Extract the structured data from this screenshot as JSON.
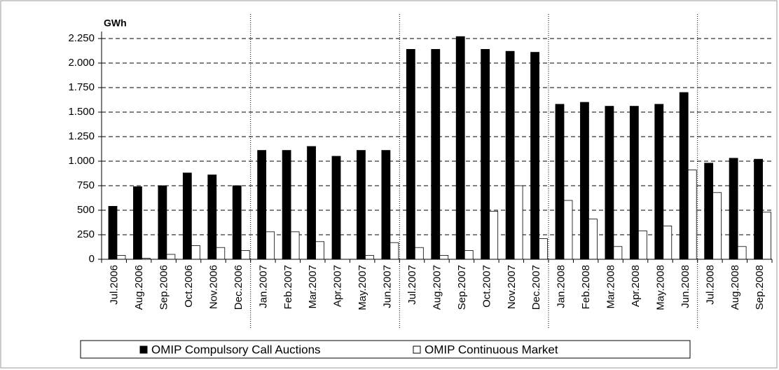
{
  "chart_data": {
    "type": "bar",
    "y_label": "GWh",
    "categories": [
      "Jul.2006",
      "Aug.2006",
      "Sep.2006",
      "Oct.2006",
      "Nov.2006",
      "Dec.2006",
      "Jan.2007",
      "Feb.2007",
      "Mar.2007",
      "Apr.2007",
      "May.2007",
      "Jun.2007",
      "Jul.2007",
      "Aug.2007",
      "Sep.2007",
      "Oct.2007",
      "Nov.2007",
      "Dec.2007",
      "Jan.2008",
      "Feb.2008",
      "Mar.2008",
      "Apr.2008",
      "May.2008",
      "Jun.2008",
      "Jul.2008",
      "Aug.2008",
      "Sep.2008"
    ],
    "series": [
      {
        "name": "OMIP Compulsory Call Auctions",
        "color": "#000000",
        "values": [
          540,
          740,
          750,
          880,
          860,
          750,
          1110,
          1110,
          1150,
          1050,
          1110,
          1110,
          2140,
          2140,
          2270,
          2140,
          2120,
          2110,
          1580,
          1600,
          1560,
          1560,
          1580,
          1700,
          980,
          1030,
          1020
        ]
      },
      {
        "name": "OMIP Continuous Market",
        "color": "#ffffff",
        "values": [
          40,
          10,
          50,
          140,
          120,
          90,
          280,
          280,
          180,
          0,
          40,
          170,
          120,
          40,
          90,
          490,
          750,
          210,
          600,
          410,
          130,
          290,
          340,
          910,
          680,
          130,
          480
        ]
      }
    ],
    "ylim": [
      0,
      2250
    ],
    "yticks": [
      0,
      250,
      500,
      750,
      {
        "value": 1000,
        "label": "1.000"
      },
      {
        "value": 1250,
        "label": "1.250"
      },
      {
        "value": 1500,
        "label": "1.500"
      },
      {
        "value": 1750,
        "label": "1.750"
      },
      {
        "value": 2000,
        "label": "2.000"
      },
      {
        "value": 2250,
        "label": "2.250"
      }
    ],
    "grid": true,
    "legend": "bottom"
  }
}
